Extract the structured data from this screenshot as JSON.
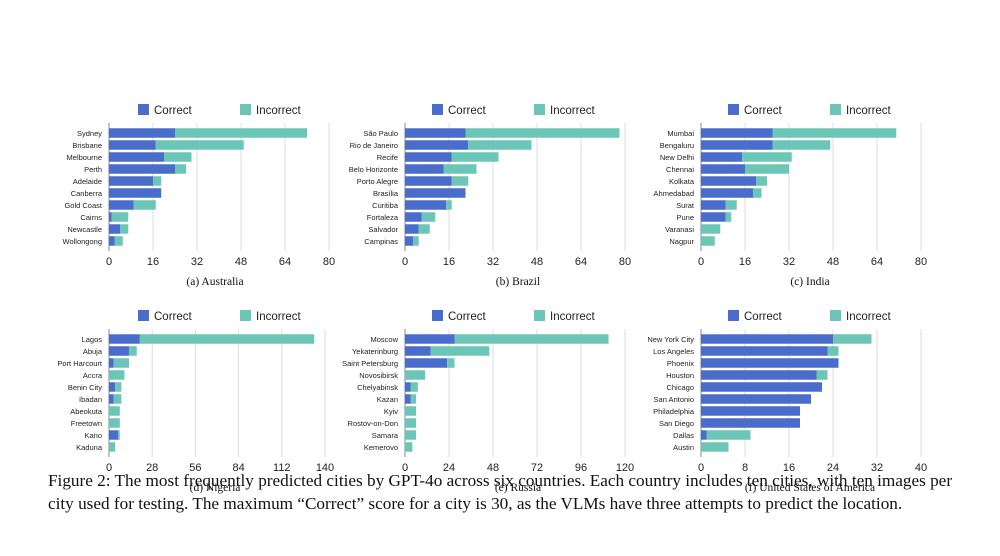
{
  "colors": {
    "correct": "#4a6ccb",
    "incorrect": "#6cc6b8",
    "grid": "#dcdcdc",
    "axis": "#888888"
  },
  "chart_data": [
    {
      "type": "bar",
      "orientation": "horizontal",
      "stacked": true,
      "subtitle": "(a) Australia",
      "categories": [
        "Sydney",
        "Brisbane",
        "Melbourne",
        "Perth",
        "Adelaide",
        "Canberra",
        "Gold Coast",
        "Cairns",
        "Newcastle",
        "Wollongong"
      ],
      "series": [
        {
          "name": "Correct",
          "values": [
            24,
            17,
            20,
            24,
            16,
            19,
            9,
            1,
            4,
            2
          ]
        },
        {
          "name": "Incorrect",
          "values": [
            48,
            32,
            10,
            4,
            3,
            0,
            8,
            6,
            3,
            3
          ]
        }
      ],
      "xticks": [
        "0",
        "16",
        "32",
        "48",
        "64",
        "80"
      ],
      "xlim": [
        0,
        80
      ],
      "legend": "top",
      "grid": true
    },
    {
      "type": "bar",
      "orientation": "horizontal",
      "stacked": true,
      "subtitle": "(b) Brazil",
      "categories": [
        "São Paulo",
        "Rio de Janeiro",
        "Recife",
        "Belo Horizonte",
        "Porto Alegre",
        "Brasília",
        "Curitiba",
        "Fortaleza",
        "Salvador",
        "Campinas"
      ],
      "series": [
        {
          "name": "Correct",
          "values": [
            22,
            23,
            17,
            14,
            17,
            22,
            15,
            6,
            5,
            3
          ]
        },
        {
          "name": "Incorrect",
          "values": [
            56,
            23,
            17,
            12,
            6,
            0,
            2,
            5,
            4,
            2
          ]
        }
      ],
      "xticks": [
        "0",
        "16",
        "32",
        "48",
        "64",
        "80"
      ],
      "xlim": [
        0,
        80
      ],
      "legend": "top",
      "grid": true
    },
    {
      "type": "bar",
      "orientation": "horizontal",
      "stacked": true,
      "subtitle": "(c) India",
      "categories": [
        "Mumbai",
        "Bengaluru",
        "New Delhi",
        "Chennai",
        "Kolkata",
        "Ahmedabad",
        "Surat",
        "Pune",
        "Varanasi",
        "Nagpur"
      ],
      "series": [
        {
          "name": "Correct",
          "values": [
            26,
            26,
            15,
            16,
            20,
            19,
            9,
            9,
            0,
            0
          ]
        },
        {
          "name": "Incorrect",
          "values": [
            45,
            21,
            18,
            16,
            4,
            3,
            4,
            2,
            7,
            5
          ]
        }
      ],
      "xticks": [
        "0",
        "16",
        "32",
        "48",
        "64",
        "80"
      ],
      "xlim": [
        0,
        80
      ],
      "legend": "top",
      "grid": true
    },
    {
      "type": "bar",
      "orientation": "horizontal",
      "stacked": true,
      "subtitle": "(d) Nigeria",
      "categories": [
        "Lagos",
        "Abuja",
        "Port Harcourt",
        "Accra",
        "Benin City",
        "Ibadan",
        "Abeokuta",
        "Freetown",
        "Kano",
        "Kaduna"
      ],
      "series": [
        {
          "name": "Correct",
          "values": [
            20,
            13,
            3,
            0,
            4,
            3,
            0,
            0,
            6,
            0
          ]
        },
        {
          "name": "Incorrect",
          "values": [
            113,
            5,
            10,
            10,
            4,
            5,
            7,
            7,
            1,
            4
          ]
        }
      ],
      "xticks": [
        "0",
        "28",
        "56",
        "84",
        "112",
        "140"
      ],
      "xlim": [
        0,
        140
      ],
      "legend": "top",
      "grid": true
    },
    {
      "type": "bar",
      "orientation": "horizontal",
      "stacked": true,
      "subtitle": "(e) Russia",
      "categories": [
        "Moscow",
        "Yekaterinburg",
        "Saint Petersburg",
        "Novosibirsk",
        "Chelyabinsk",
        "Kazan",
        "Kyiv",
        "Rostov-on-Don",
        "Samara",
        "Kemerovo"
      ],
      "series": [
        {
          "name": "Correct",
          "values": [
            27,
            14,
            23,
            0,
            3,
            3,
            0,
            0,
            0,
            0
          ]
        },
        {
          "name": "Incorrect",
          "values": [
            84,
            32,
            4,
            11,
            4,
            3,
            6,
            6,
            6,
            4
          ]
        }
      ],
      "xticks": [
        "0",
        "24",
        "48",
        "72",
        "96",
        "120"
      ],
      "xlim": [
        0,
        120
      ],
      "legend": "top",
      "grid": true
    },
    {
      "type": "bar",
      "orientation": "horizontal",
      "stacked": true,
      "subtitle": "(f) United States of America",
      "categories": [
        "New York City",
        "Los Angeles",
        "Phoenix",
        "Houston",
        "Chicago",
        "San Antonio",
        "Philadelphia",
        "San Diego",
        "Dallas",
        "Austin"
      ],
      "series": [
        {
          "name": "Correct",
          "values": [
            24,
            23,
            25,
            21,
            22,
            20,
            18,
            18,
            1,
            0
          ]
        },
        {
          "name": "Incorrect",
          "values": [
            7,
            2,
            0,
            2,
            0,
            0,
            0,
            0,
            8,
            5
          ]
        }
      ],
      "xticks": [
        "0",
        "8",
        "16",
        "24",
        "32",
        "40"
      ],
      "xlim": [
        0,
        40
      ],
      "legend": "top",
      "grid": true
    }
  ],
  "caption": "Figure 2: The most frequently predicted cities by GPT-4o across six countries. Each country includes ten cities, with ten images per city used for testing. The maximum “Correct” score for a city is 30, as the VLMs have three attempts to predict the location."
}
